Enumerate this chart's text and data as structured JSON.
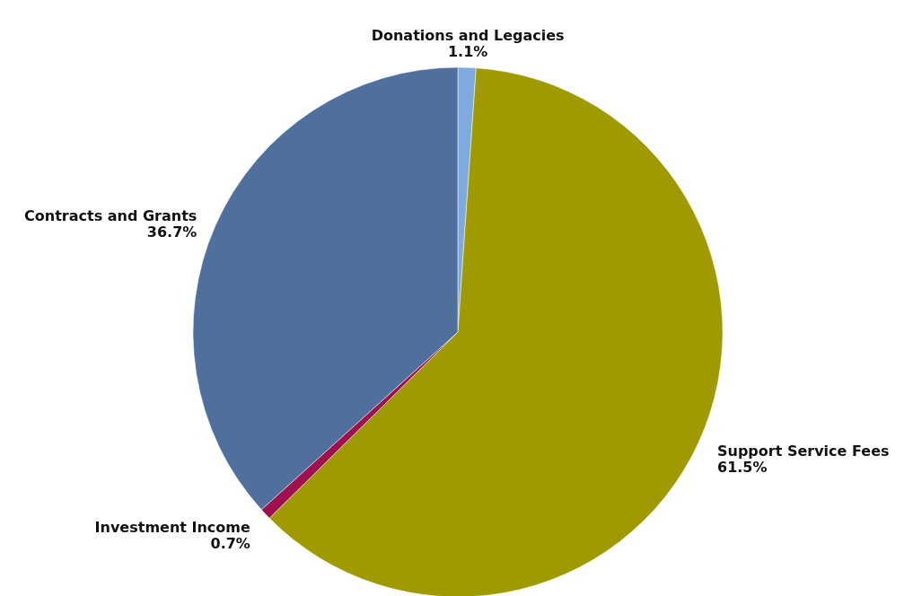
{
  "chart_data": {
    "type": "pie",
    "categories": [
      "Donations and Legacies",
      "Support Service Fees",
      "Investment Income",
      "Contracts and Grants"
    ],
    "values": [
      1.1,
      61.5,
      0.7,
      36.7
    ],
    "value_labels": [
      "1.1%",
      "61.5%",
      "0.7%",
      "36.7%"
    ],
    "colors": [
      "#7faadf",
      "#9e9a00",
      "#a0104e",
      "#4f6f9c"
    ]
  }
}
